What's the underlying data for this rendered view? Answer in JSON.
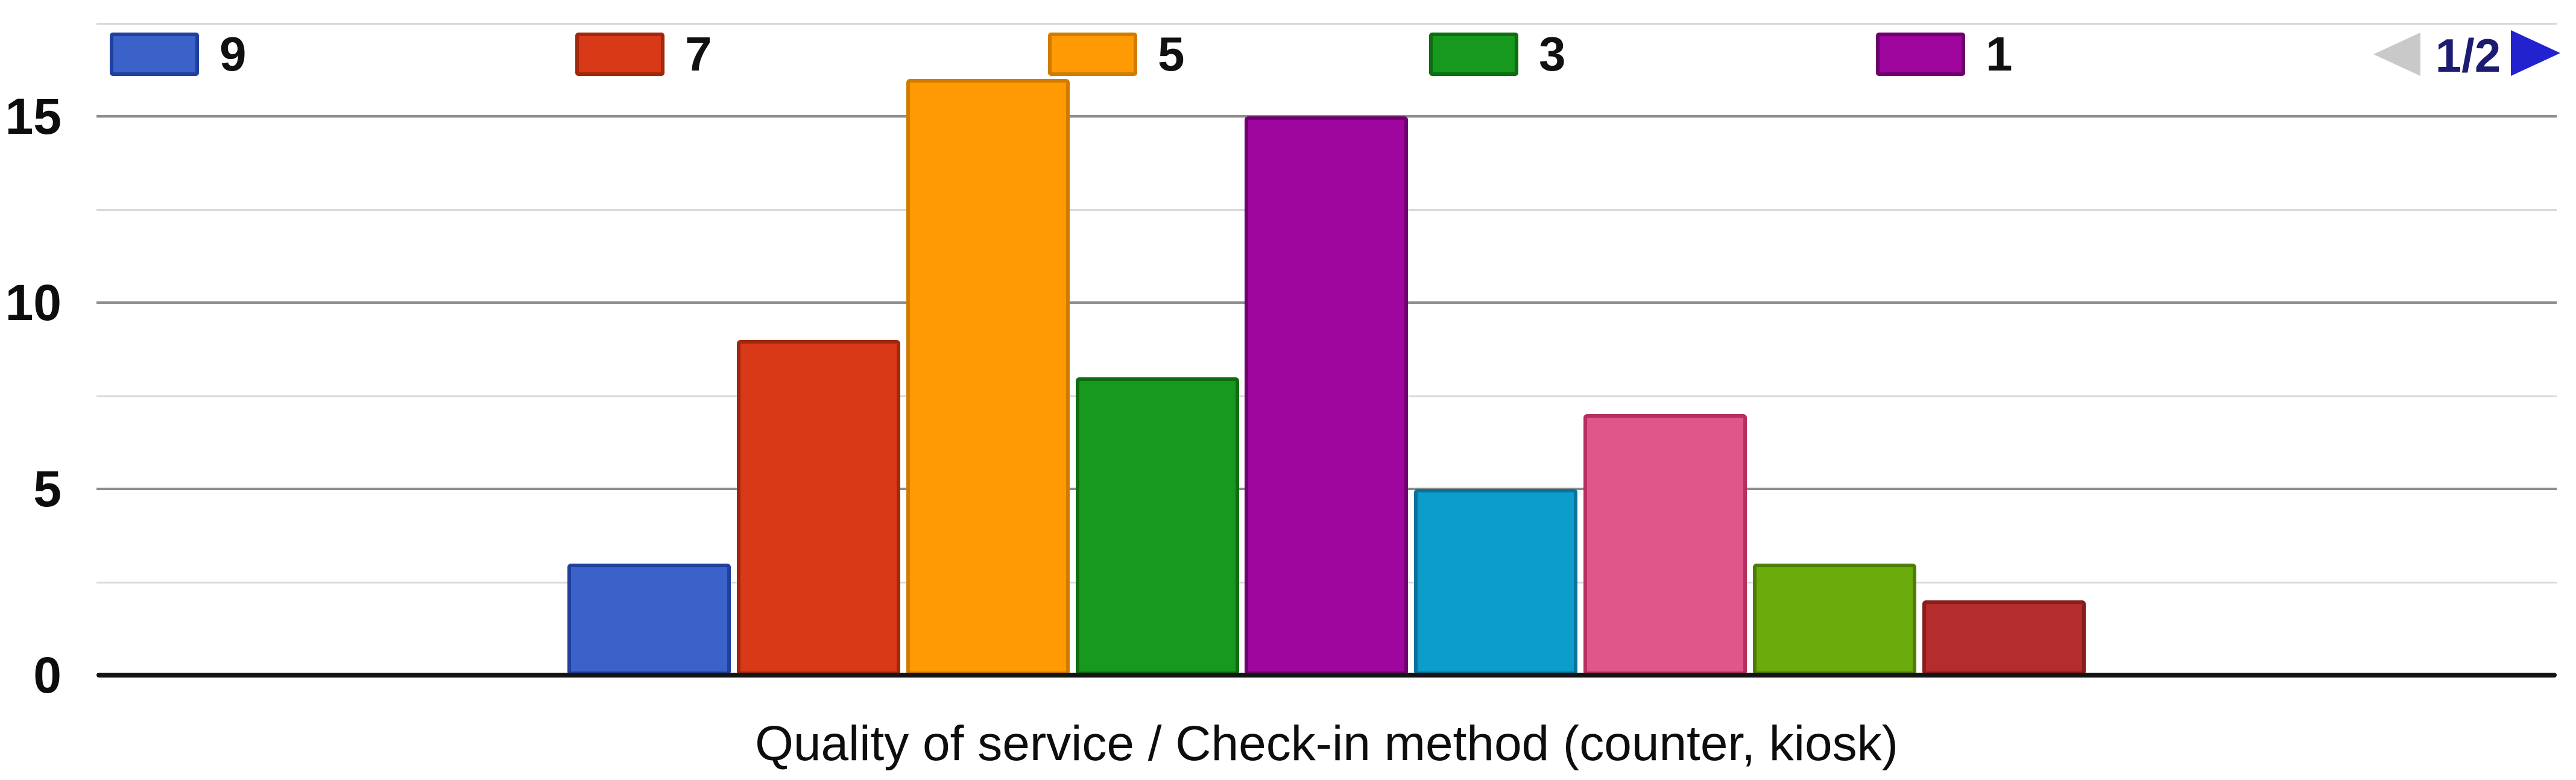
{
  "chart_data": {
    "type": "bar",
    "title": "",
    "xlabel": "Quality of service / Check-in method (counter, kiosk)",
    "ylabel": "",
    "ylim": [
      0,
      17.5
    ],
    "yticks": [
      0,
      5,
      10,
      15
    ],
    "minor_gridlines": [
      2.5,
      7.5,
      12.5,
      17.5
    ],
    "grid": "on",
    "legend_position": "top",
    "bars": [
      {
        "legend_label": "9",
        "value": 3,
        "color": "#3b62c9",
        "border_color": "#20409e"
      },
      {
        "legend_label": "7",
        "value": 9,
        "color": "#d83917",
        "border_color": "#a1280d"
      },
      {
        "legend_label": "5",
        "value": 16,
        "color": "#ff9a04",
        "border_color": "#d07c00"
      },
      {
        "legend_label": "3",
        "value": 8,
        "color": "#17991f",
        "border_color": "#0c6d12"
      },
      {
        "legend_label": "1",
        "value": 15,
        "color": "#9e069e",
        "border_color": "#6e016e"
      },
      {
        "legend_label": "",
        "value": 5,
        "color": "#0d9dca",
        "border_color": "#08749b"
      },
      {
        "legend_label": "",
        "value": 7,
        "color": "#e0568a",
        "border_color": "#b52f5f"
      },
      {
        "legend_label": "",
        "value": 3,
        "color": "#6cab0c",
        "border_color": "#4c7d05"
      },
      {
        "legend_label": "",
        "value": 2,
        "color": "#b52c2c",
        "border_color": "#871d1d"
      }
    ]
  },
  "legend": {
    "pager": {
      "label": "1/2",
      "prev_enabled": false,
      "next_enabled": true,
      "prev_color": "#c9c9c9",
      "next_color": "#2222cf",
      "label_color": "#1c1c72"
    }
  },
  "axis": {
    "tick_labels": [
      "0",
      "5",
      "10",
      "15"
    ],
    "label_color": "#0d0d0d",
    "major_grid_color": "#8c8c8c",
    "minor_grid_color": "#d9d9d9",
    "baseline_color": "#141414"
  }
}
